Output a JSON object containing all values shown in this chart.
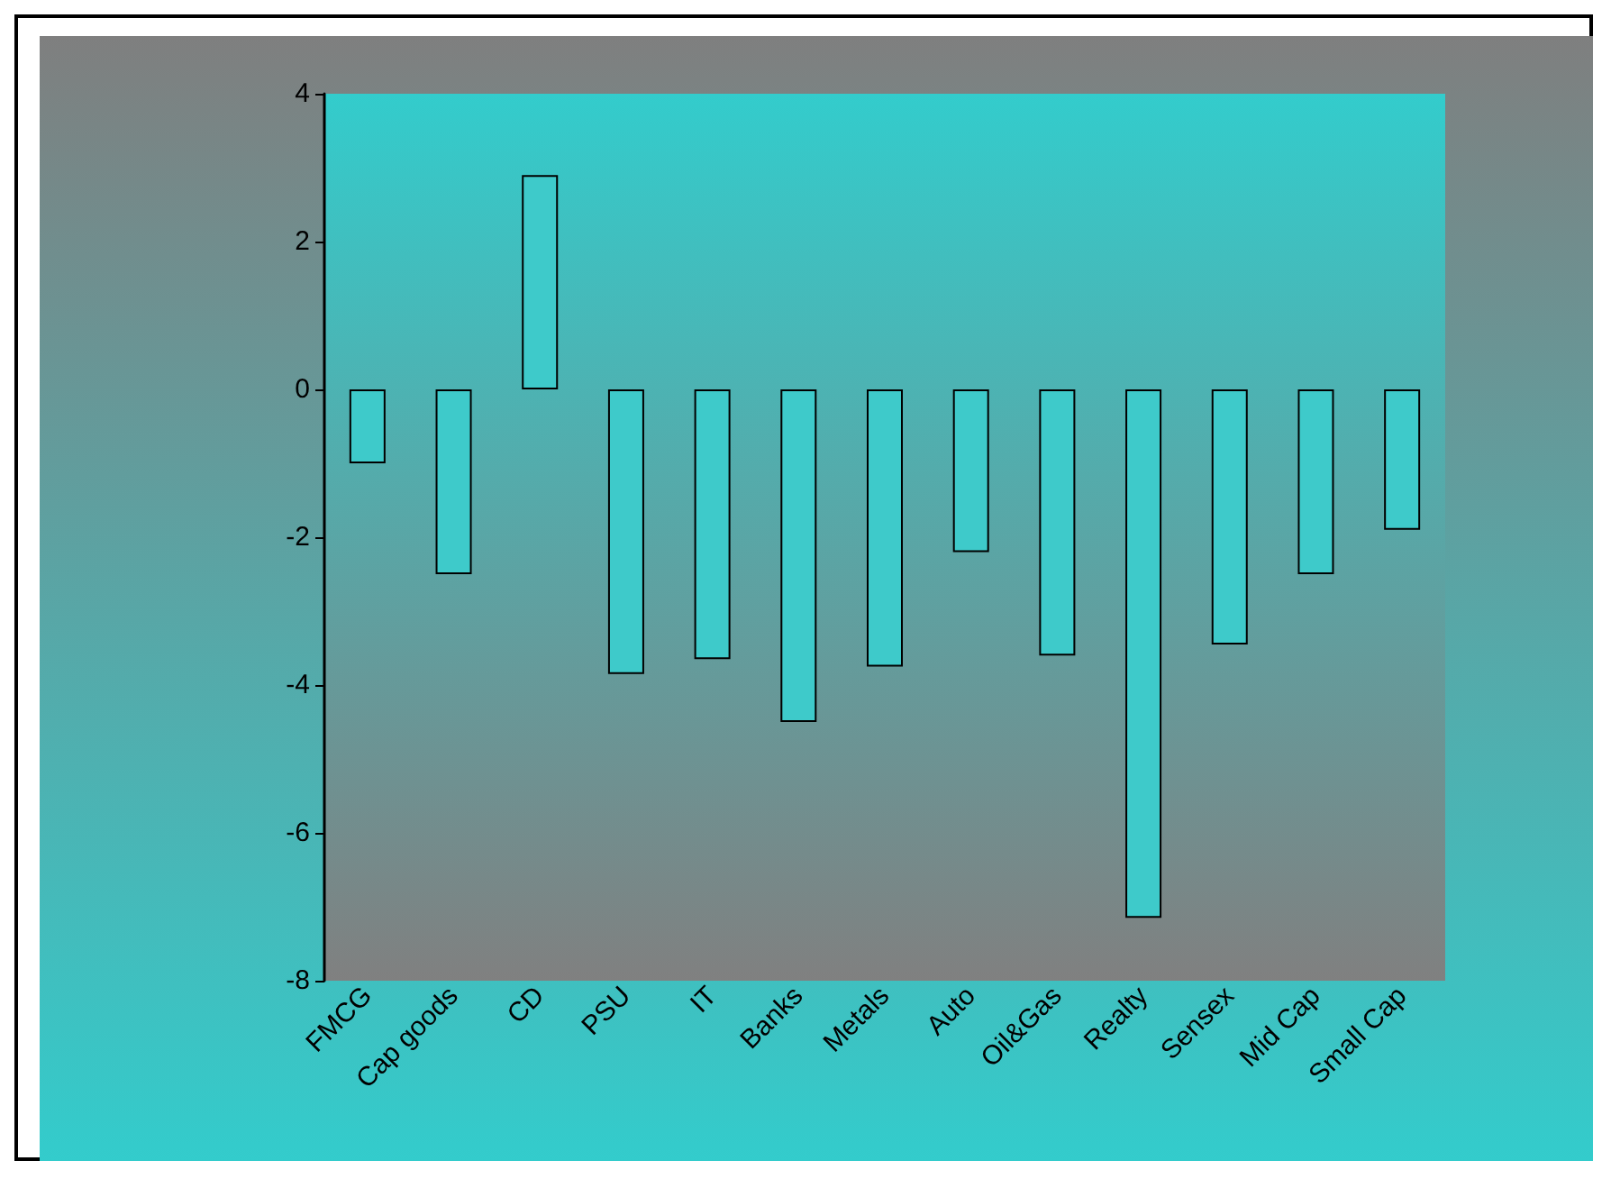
{
  "chart_data": {
    "type": "bar",
    "categories": [
      "FMCG",
      "Cap goods",
      "CD",
      "PSU",
      "IT",
      "Banks",
      "Metals",
      "Auto",
      "Oil&Gas",
      "Realty",
      "Sensex",
      "Mid Cap",
      "Small Cap"
    ],
    "values": [
      -1.0,
      -2.5,
      2.9,
      -3.85,
      -3.65,
      -4.5,
      -3.75,
      -2.2,
      -3.6,
      -7.15,
      -3.45,
      -2.5,
      -1.9
    ],
    "color": "#3ecaca",
    "ylim": [
      -8,
      4
    ],
    "yticks": [
      -8,
      -6,
      -4,
      -2,
      0,
      2,
      4
    ],
    "grid": false
  }
}
